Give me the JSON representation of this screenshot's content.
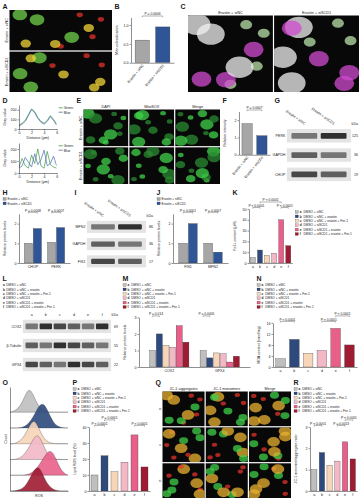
{
  "chart_data": [
    {
      "type": "bar",
      "panel": "B",
      "ylabel": "Mito-colocalization",
      "categories": [
        "Erastin + siNC",
        "Erastin + siSCD1"
      ],
      "values": [
        0.6,
        0.95
      ],
      "colors": [
        "#a6a6a6",
        "#2f5597"
      ],
      "ylim": [
        0,
        1.2
      ],
      "yticks": [
        {
          "value": 0,
          "label": "0.0"
        },
        0.5,
        {
          "value": 1,
          "label": "1.0"
        }
      ],
      "annotations": [
        {
          "text": "P = 0.0006",
          "from": 0,
          "to": 1
        }
      ]
    },
    {
      "type": "line",
      "panel": "D",
      "xlabel": "Distance (μm)",
      "ylabel": "Gray value",
      "x": [
        0,
        0.5,
        1,
        1.5,
        2,
        2.5,
        3,
        3.5,
        4,
        4.5,
        5,
        5.5,
        6
      ],
      "xlim": [
        0,
        6
      ],
      "xticks": [
        0,
        2,
        4,
        6
      ],
      "ylim": [
        0,
        250
      ],
      "yticks": [
        0,
        100,
        200
      ],
      "legend": "right",
      "series": [
        {
          "name": "Green",
          "color": "#3a9a48",
          "values": [
            40,
            60,
            90,
            150,
            210,
            180,
            120,
            80,
            60,
            90,
            140,
            100,
            50
          ]
        },
        {
          "name": "Blue",
          "color": "#4f68b0",
          "values": [
            30,
            50,
            80,
            140,
            200,
            170,
            110,
            70,
            50,
            80,
            130,
            90,
            40
          ]
        }
      ]
    },
    {
      "type": "line",
      "xlabel": "Distance (μm)",
      "ylabel": "Gray value",
      "x": [
        0,
        0.5,
        1,
        1.5,
        2,
        2.5,
        3,
        3.5,
        4,
        4.5,
        5,
        5.5,
        6
      ],
      "xlim": [
        0,
        6
      ],
      "xticks": [
        0,
        2,
        4,
        6
      ],
      "ylim": [
        0,
        250
      ],
      "yticks": [
        0,
        100,
        200
      ],
      "legend": "right",
      "series": [
        {
          "name": "Green",
          "color": "#3a9a48",
          "values": [
            50,
            120,
            60,
            40,
            150,
            80,
            200,
            60,
            40,
            180,
            70,
            50,
            40
          ]
        },
        {
          "name": "Blue",
          "color": "#4f68b0",
          "values": [
            40,
            60,
            130,
            90,
            50,
            160,
            70,
            110,
            190,
            60,
            80,
            140,
            60
          ]
        }
      ]
    },
    {
      "type": "bar",
      "panel": "F",
      "ylabel": "Relative intensity",
      "categories": [
        "Erastin + siNC",
        "Erastin + siSCD1"
      ],
      "values": [
        1.8,
        1.1
      ],
      "colors": [
        "#a6a6a6",
        "#2f5597"
      ],
      "ylim": [
        0,
        2.5
      ],
      "yticks": [
        0,
        1,
        2
      ],
      "annotations": [
        {
          "text": "P = 0.0007",
          "from": 0,
          "to": 1
        }
      ]
    },
    {
      "type": "bar",
      "panel": "H",
      "ylabel": "Relative protein levels",
      "legend": "top",
      "categories": [
        "CHOP",
        "PERK"
      ],
      "series": [
        {
          "name": "Erastin + siNC",
          "color": "#a6a6a6",
          "values": [
            1.0,
            1.05
          ]
        },
        {
          "name": "Erastin + siSCD1",
          "color": "#2f5597",
          "values": [
            1.75,
            1.8
          ]
        }
      ],
      "ylim": [
        0,
        2.5
      ],
      "yticks": [
        0,
        1,
        2
      ],
      "annotations": [
        {
          "text": "P = 0.0008",
          "group": 0,
          "from": 0,
          "to": 1
        },
        {
          "text": "P = 0.0007",
          "group": 1,
          "from": 0,
          "to": 1
        }
      ]
    },
    {
      "type": "bar",
      "panel": "J",
      "ylabel": "Relative protein levels",
      "legend": "top",
      "categories": [
        "FIS1",
        "MFN2"
      ],
      "series": [
        {
          "name": "Erastin + siNC",
          "color": "#a6a6a6",
          "values": [
            1.0,
            1.0
          ]
        },
        {
          "name": "Erastin + siSCD1",
          "color": "#2f5597",
          "values": [
            2.0,
            0.55
          ]
        }
      ],
      "ylim": [
        0,
        2.5
      ],
      "yticks": [
        0,
        1,
        2
      ],
      "annotations": [
        {
          "text": "P < 0.0001",
          "group": 0,
          "from": 0,
          "to": 1
        },
        {
          "text": "P = 0.0007",
          "group": 1,
          "from": 0,
          "to": 1
        }
      ]
    },
    {
      "type": "bar",
      "panel": "K",
      "ylabel": "Fe2+ content (μM)",
      "legend": "right",
      "categories": [
        "a",
        "b",
        "c",
        "d",
        "e",
        "f"
      ],
      "values": [
        5,
        12,
        7,
        9,
        40,
        16
      ],
      "colors": [
        "#bfbfbf",
        "#2e4a7d",
        "#f6d5b8",
        "#f2b8c6",
        "#e8608a",
        "#9e1b32"
      ],
      "legend_labels": [
        "DMSO + siNC",
        "DMSO + siNC + erastin",
        "DMSO + siNC + erastin + Fer-1",
        "DMSO + siSCD1",
        "DMSO + siSCD1 + erastin",
        "DMSO + siSCD1 + erastin + Fer-1"
      ],
      "ylim": [
        0,
        50
      ],
      "yticks": [
        0,
        10,
        20,
        30,
        40,
        50
      ],
      "annotations": [
        {
          "text": "P < 0.0001",
          "from": 0,
          "to": 1
        },
        {
          "text": "P < 0.0001",
          "from": 1,
          "to": 4
        },
        {
          "text": "P < 0.0001",
          "from": 4,
          "to": 5
        }
      ]
    },
    {
      "type": "bar",
      "panel": "M",
      "ylabel": "Relative protein levels",
      "legend": "top",
      "categories": [
        "COX2",
        "GPX4"
      ],
      "series": [
        {
          "name": "a",
          "color": "#bfbfbf",
          "values": [
            1.0,
            1.0
          ]
        },
        {
          "name": "b",
          "color": "#2e4a7d",
          "values": [
            2.0,
            0.55
          ]
        },
        {
          "name": "c",
          "color": "#f6d5b8",
          "values": [
            1.3,
            0.85
          ]
        },
        {
          "name": "d",
          "color": "#f2b8c6",
          "values": [
            1.2,
            0.8
          ]
        },
        {
          "name": "e",
          "color": "#e8608a",
          "values": [
            2.5,
            0.3
          ]
        },
        {
          "name": "f",
          "color": "#9e1b32",
          "values": [
            1.5,
            0.65
          ]
        }
      ],
      "legend_labels": [
        "DMSO + siNC",
        "DMSO + siNC + erastin",
        "DMSO + siNC + erastin + Fer-1",
        "DMSO + siSCD1",
        "DMSO + siSCD1 + erastin",
        "DMSO + siSCD1 + erastin + Fer-1"
      ],
      "ylim": [
        0,
        3
      ],
      "yticks": [
        0,
        1,
        2,
        3
      ],
      "annotations": [
        {
          "text": "P = 0.014",
          "group": 0,
          "from": 0,
          "to": 1
        },
        {
          "text": "P = 0.0005",
          "group": 1,
          "from": 0,
          "to": 1
        }
      ]
    },
    {
      "type": "bar",
      "panel": "N",
      "ylabel": "MDA content (nmol/mg)",
      "legend": "top",
      "categories": [
        "a",
        "b",
        "c",
        "d",
        "e",
        "f"
      ],
      "values": [
        3,
        10,
        5,
        6,
        14,
        8
      ],
      "colors": [
        "#bfbfbf",
        "#2e4a7d",
        "#f6d5b8",
        "#f2b8c6",
        "#e8608a",
        "#9e1b32"
      ],
      "legend_labels": [
        "DMSO + siNC",
        "DMSO + siNC + erastin",
        "DMSO + siNC + erastin + Fer-1",
        "DMSO + siSCD1",
        "DMSO + siSCD1 + erastin",
        "DMSO + siSCD1 + erastin + Fer-1"
      ],
      "ylim": [
        0,
        16
      ],
      "yticks": [
        0,
        4,
        8,
        12,
        16
      ],
      "annotations": [
        {
          "text": "P < 0.0001",
          "from": 0,
          "to": 1
        },
        {
          "text": "P < 0.0001",
          "from": 3,
          "to": 4
        },
        {
          "text": "P < 0.0001",
          "from": 4,
          "to": 5
        }
      ]
    },
    {
      "type": "density",
      "panel": "O",
      "xlabel": "ROS",
      "ylabel": "Count",
      "tick_labels": false,
      "x": [
        0,
        0.5,
        1,
        1.5,
        2,
        2.5,
        3,
        3.5,
        4,
        4.5,
        5,
        5.5,
        6
      ],
      "xlim": [
        0,
        6
      ],
      "ylim": [
        0,
        1
      ],
      "series": [
        {
          "color": "#bfbfbf",
          "values": [
            0,
            0.05,
            0.2,
            0.6,
            1,
            0.6,
            0.2,
            0.05,
            0,
            0,
            0,
            0,
            0
          ]
        },
        {
          "color": "#2e4a7d",
          "values": [
            0,
            0,
            0,
            0.05,
            0.2,
            0.5,
            0.9,
            1,
            0.6,
            0.2,
            0.05,
            0,
            0
          ]
        },
        {
          "color": "#f6d5b8",
          "values": [
            0,
            0,
            0.1,
            0.3,
            0.7,
            1,
            0.6,
            0.2,
            0.05,
            0,
            0,
            0,
            0
          ]
        },
        {
          "color": "#f2b8c6",
          "values": [
            0,
            0,
            0.05,
            0.2,
            0.5,
            0.9,
            1,
            0.5,
            0.15,
            0.03,
            0,
            0,
            0
          ]
        },
        {
          "color": "#e8608a",
          "values": [
            0,
            0,
            0,
            0,
            0.05,
            0.15,
            0.4,
            0.7,
            1,
            0.9,
            0.4,
            0.1,
            0
          ]
        },
        {
          "color": "#9e1b32",
          "values": [
            0,
            0,
            0.05,
            0.15,
            0.45,
            0.85,
            1,
            0.55,
            0.2,
            0.05,
            0,
            0,
            0
          ]
        }
      ]
    },
    {
      "type": "bar",
      "panel": "P",
      "ylabel": "Lipid ROS level (%)",
      "legend": "top",
      "categories": [
        "a",
        "b",
        "c",
        "d",
        "e",
        "f"
      ],
      "values": [
        10,
        22,
        12,
        18,
        35,
        15
      ],
      "colors": [
        "#bfbfbf",
        "#2e4a7d",
        "#f6d5b8",
        "#f2b8c6",
        "#e8608a",
        "#9e1b32"
      ],
      "legend_labels": [
        "DMSO + siNC",
        "DMSO + siNC + erastin",
        "DMSO + siNC + erastin + Fer-1",
        "DMSO + siSCD1",
        "DMSO + siSCD1 + erastin",
        "DMSO + siSCD1 + erastin + Fer-1"
      ],
      "ylim": [
        0,
        40
      ],
      "yticks": [
        0,
        10,
        20,
        30,
        40
      ],
      "annotations": [
        {
          "text": "P < 0.0001",
          "from": 0,
          "to": 1
        },
        {
          "text": "P = 0.0001",
          "from": 1,
          "to": 2
        },
        {
          "text": "P < 0.0001",
          "from": 4,
          "to": 5
        }
      ]
    },
    {
      "type": "bar",
      "panel": "R",
      "ylabel": "JC-1 monomer/aggregate ratio",
      "legend": "top",
      "categories": [
        "a",
        "b",
        "c",
        "d",
        "e",
        "f"
      ],
      "values": [
        1.0,
        1.8,
        1.2,
        1.4,
        2.3,
        1.5
      ],
      "colors": [
        "#bfbfbf",
        "#2e4a7d",
        "#f6d5b8",
        "#f2b8c6",
        "#e8608a",
        "#9e1b32"
      ],
      "legend_labels": [
        "DMSO + siNC",
        "DMSO + siNC + erastin",
        "DMSO + siNC + erastin + Fer-1",
        "DMSO + siSCD1",
        "DMSO + siSCD1 + erastin",
        "DMSO + siSCD1 + erastin + Fer-1"
      ],
      "ylim": [
        0,
        3
      ],
      "yticks": [
        0,
        1,
        2,
        3
      ],
      "annotations": [
        {
          "text": "P < 0.0001",
          "from": 0,
          "to": 1
        },
        {
          "text": "P = 0.0013",
          "from": 3,
          "to": 4
        },
        {
          "text": "P < 0.0001",
          "from": 4,
          "to": 5
        }
      ]
    }
  ],
  "blots": [
    {
      "panel": "G",
      "unit": "kDa",
      "lanes": [
        "Erastin + siNC",
        "Erastin + siSCD1"
      ],
      "bands": [
        {
          "name": "PERK",
          "kda": 125
        },
        {
          "name": "GAPDH",
          "kda": 36
        },
        {
          "name": "CHOP",
          "kda": 19
        }
      ]
    },
    {
      "panel": "I",
      "unit": "kDa",
      "lanes": [
        "Erastin + siNC",
        "Erastin + siSCD1"
      ],
      "bands": [
        {
          "name": "MFN2",
          "kda": 86
        },
        {
          "name": "GAPDH",
          "kda": 36
        },
        {
          "name": "FIS1",
          "kda": 17
        }
      ]
    },
    {
      "panel": "L",
      "unit": "kDa",
      "lanes": [
        "a",
        "b",
        "c",
        "d",
        "e",
        "f"
      ],
      "legend_labels": [
        "DMSO + siNC",
        "DMSO + siNC + erastin",
        "DMSO + siNC + erastin + Fer-1",
        "DMSO + siSCD1",
        "DMSO + siSCD1 + erastin",
        "DMSO + siSCD1 + erastin + Fer-1"
      ],
      "bands": [
        {
          "name": "COX2",
          "kda": 69
        },
        {
          "name": "β-Tubulin",
          "kda": 55
        },
        {
          "name": "GPX4",
          "kda": 22
        }
      ]
    }
  ],
  "images": [
    {
      "panel": "A",
      "row_labels": [
        "Erastin + siNC",
        "Erastin + siSCD1"
      ],
      "colors": [
        "#e0302a",
        "#f2d43a",
        "#6fd04a"
      ]
    },
    {
      "panel": "C",
      "col_labels": [
        "Erastin + siNC",
        "Erastin + siSCD1"
      ],
      "colors": [
        "#b9e2a8",
        "#d04ad0",
        "#f0f0f0"
      ]
    },
    {
      "panel": "E",
      "row_labels": [
        "Erastin + siNC",
        "Erastin + siSCD1"
      ],
      "col_labels": [
        "DAPI",
        "MitoSOX",
        "Merge"
      ],
      "colors": [
        "#3fd04a",
        "#2a8a30"
      ]
    },
    {
      "panel": "Q",
      "row_labels": [
        "a",
        "c",
        "e"
      ],
      "col_labels": [
        "JC-1 aggregates",
        "JC-1 monomers",
        "Merge"
      ],
      "colors": [
        "#e0302a",
        "#3fcf4a",
        "#e8b030"
      ]
    }
  ]
}
